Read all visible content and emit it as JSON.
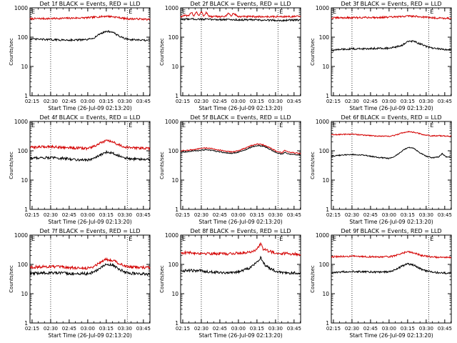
{
  "figure": {
    "background": "#ffffff",
    "series_colors": {
      "events": "#000000",
      "lld": "#d40000"
    }
  },
  "chart_data": [
    {
      "type": "line",
      "title": "Det 1f BLACK = Events, RED = LLD",
      "ylabel": "Counts/sec",
      "xlabel": "Start Time (26-Jul-09 02:13:20)",
      "yscale": "log",
      "ylim": [
        1,
        1000
      ],
      "y_ticks": [
        "1",
        "10",
        "100",
        "1000"
      ],
      "x_ticks": [
        "02:15",
        "02:30",
        "02:45",
        "03:00",
        "03:15",
        "03:30",
        "03:45"
      ],
      "x_tick_minutes": [
        15,
        30,
        45,
        60,
        75,
        90,
        105
      ],
      "xlim_minutes": [
        13.3,
        110.3
      ],
      "markers": [
        {
          "label": "",
          "minutes": 30
        },
        {
          "label": "E",
          "minutes": 92
        }
      ],
      "series": [
        {
          "key": "lld",
          "x_minutes": [
            13.3,
            20,
            30,
            40,
            50,
            60,
            70,
            75,
            80,
            85,
            90,
            95,
            100,
            105,
            110.3
          ],
          "values": [
            420,
            430,
            430,
            440,
            450,
            460,
            500,
            520,
            500,
            470,
            430,
            420,
            420,
            410,
            400
          ],
          "noise": 0.05
        },
        {
          "key": "events",
          "x_minutes": [
            13.3,
            20,
            30,
            40,
            50,
            60,
            65,
            70,
            75,
            80,
            85,
            90,
            95,
            100,
            105,
            110.3
          ],
          "values": [
            85,
            85,
            82,
            80,
            80,
            82,
            95,
            130,
            160,
            150,
            110,
            90,
            82,
            80,
            78,
            76
          ],
          "noise": 0.05
        }
      ]
    },
    {
      "type": "line",
      "title": "Det 2f BLACK = Events, RED = LLD",
      "ylabel": "Counts/sec",
      "xlabel": "Start Time (26-Jul-09 02:13:20)",
      "yscale": "log",
      "ylim": [
        1,
        1000
      ],
      "y_ticks": [
        "1",
        "10",
        "100",
        "1000"
      ],
      "x_ticks": [
        "02:15",
        "02:30",
        "02:45",
        "03:00",
        "03:15",
        "03:30",
        "03:45"
      ],
      "x_tick_minutes": [
        15,
        30,
        45,
        60,
        75,
        90,
        105
      ],
      "xlim_minutes": [
        13.3,
        110.3
      ],
      "markers": [
        {
          "label": "",
          "minutes": 30
        },
        {
          "label": "E",
          "minutes": 92
        }
      ],
      "series": [
        {
          "key": "lld",
          "x_minutes": [
            13.3,
            16,
            20,
            22,
            24,
            26,
            28,
            30,
            32,
            34,
            36,
            38,
            50,
            52,
            54,
            56,
            60,
            80,
            95,
            110.3
          ],
          "values": [
            500,
            550,
            520,
            750,
            520,
            760,
            520,
            740,
            520,
            720,
            520,
            500,
            510,
            700,
            510,
            650,
            500,
            500,
            500,
            510
          ],
          "noise": 0.05
        },
        {
          "key": "events",
          "x_minutes": [
            13.3,
            20,
            30,
            40,
            50,
            60,
            70,
            80,
            90,
            95,
            100,
            110.3
          ],
          "values": [
            400,
            420,
            410,
            400,
            400,
            390,
            390,
            380,
            380,
            370,
            380,
            385
          ],
          "noise": 0.05
        }
      ]
    },
    {
      "type": "line",
      "title": "Det 3f BLACK = Events, RED = LLD",
      "ylabel": "Counts/sec",
      "xlabel": "Start Time (26-Jul-09 02:13:20)",
      "yscale": "log",
      "ylim": [
        1,
        1000
      ],
      "y_ticks": [
        "1",
        "10",
        "100",
        "1000"
      ],
      "x_ticks": [
        "02:15",
        "02:30",
        "02:45",
        "03:00",
        "03:15",
        "03:30",
        "03:45"
      ],
      "x_tick_minutes": [
        15,
        30,
        45,
        60,
        75,
        90,
        105
      ],
      "xlim_minutes": [
        13.3,
        110.3
      ],
      "markers": [
        {
          "label": "",
          "minutes": 30
        },
        {
          "label": "E",
          "minutes": 92
        }
      ],
      "series": [
        {
          "key": "lld",
          "x_minutes": [
            13.3,
            20,
            30,
            40,
            50,
            60,
            70,
            75,
            80,
            90,
            95,
            100,
            110.3
          ],
          "values": [
            450,
            460,
            460,
            470,
            470,
            480,
            500,
            530,
            520,
            480,
            460,
            450,
            440
          ],
          "noise": 0.05
        },
        {
          "key": "events",
          "x_minutes": [
            13.3,
            20,
            30,
            40,
            50,
            60,
            65,
            70,
            75,
            80,
            85,
            90,
            95,
            100,
            110.3
          ],
          "values": [
            35,
            38,
            40,
            40,
            42,
            42,
            45,
            52,
            70,
            72,
            60,
            48,
            42,
            40,
            36
          ],
          "noise": 0.05
        }
      ]
    },
    {
      "type": "line",
      "title": "Det 4f BLACK = Events, RED = LLD",
      "ylabel": "Counts/sec",
      "xlabel": "Start Time (26-Jul-09 02:13:20)",
      "yscale": "log",
      "ylim": [
        1,
        1000
      ],
      "y_ticks": [
        "1",
        "10",
        "100",
        "1000"
      ],
      "x_ticks": [
        "02:15",
        "02:30",
        "02:45",
        "03:00",
        "03:15",
        "03:30",
        "03:45"
      ],
      "x_tick_minutes": [
        15,
        30,
        45,
        60,
        75,
        90,
        105
      ],
      "xlim_minutes": [
        13.3,
        110.3
      ],
      "markers": [
        {
          "label": "",
          "minutes": 30
        },
        {
          "label": "E",
          "minutes": 92
        }
      ],
      "series": [
        {
          "key": "lld",
          "x_minutes": [
            13.3,
            20,
            30,
            40,
            50,
            60,
            65,
            70,
            75,
            80,
            85,
            90,
            95,
            100,
            110.3
          ],
          "values": [
            130,
            135,
            140,
            130,
            125,
            120,
            140,
            180,
            220,
            200,
            160,
            135,
            125,
            125,
            120
          ],
          "noise": 0.07
        },
        {
          "key": "events",
          "x_minutes": [
            13.3,
            20,
            30,
            40,
            50,
            60,
            65,
            70,
            75,
            80,
            85,
            90,
            95,
            100,
            110.3
          ],
          "values": [
            55,
            58,
            58,
            55,
            50,
            48,
            55,
            70,
            90,
            85,
            68,
            58,
            52,
            52,
            50
          ],
          "noise": 0.07
        }
      ]
    },
    {
      "type": "line",
      "title": "Det 5f BLACK = Events, RED = LLD",
      "ylabel": "Counts/sec",
      "xlabel": "Start Time (26-Jul-09 02:13:20)",
      "yscale": "log",
      "ylim": [
        1,
        1000
      ],
      "y_ticks": [
        "1",
        "10",
        "100",
        "1000"
      ],
      "x_ticks": [
        "02:15",
        "02:30",
        "02:45",
        "03:00",
        "03:15",
        "03:30",
        "03:45"
      ],
      "x_tick_minutes": [
        15,
        30,
        45,
        60,
        75,
        90,
        105
      ],
      "xlim_minutes": [
        13.3,
        110.3
      ],
      "markers": [
        {
          "label": "",
          "minutes": 30
        },
        {
          "label": "E",
          "minutes": 92
        }
      ],
      "series": [
        {
          "key": "lld",
          "x_minutes": [
            13.3,
            20,
            25,
            30,
            35,
            40,
            45,
            50,
            55,
            60,
            65,
            70,
            75,
            80,
            85,
            90,
            95,
            98,
            100,
            105,
            110.3
          ],
          "values": [
            100,
            105,
            110,
            120,
            125,
            115,
            105,
            95,
            92,
            100,
            120,
            150,
            170,
            160,
            130,
            100,
            85,
            105,
            90,
            85,
            80
          ],
          "noise": 0.03
        },
        {
          "key": "events",
          "x_minutes": [
            13.3,
            20,
            25,
            30,
            35,
            40,
            45,
            50,
            55,
            60,
            65,
            70,
            75,
            80,
            85,
            90,
            95,
            98,
            100,
            105,
            110.3
          ],
          "values": [
            90,
            95,
            100,
            105,
            108,
            100,
            92,
            85,
            82,
            90,
            105,
            130,
            150,
            145,
            115,
            90,
            75,
            90,
            78,
            75,
            72
          ],
          "noise": 0.03
        }
      ]
    },
    {
      "type": "line",
      "title": "Det 6f BLACK = Events, RED = LLD",
      "ylabel": "Counts/sec",
      "xlabel": "Start Time (26-Jul-09 02:13:20)",
      "yscale": "log",
      "ylim": [
        1,
        1000
      ],
      "y_ticks": [
        "1",
        "10",
        "100",
        "1000"
      ],
      "x_ticks": [
        "02:15",
        "02:30",
        "02:45",
        "03:00",
        "03:15",
        "03:30",
        "03:45"
      ],
      "x_tick_minutes": [
        15,
        30,
        45,
        60,
        75,
        90,
        105
      ],
      "xlim_minutes": [
        13.3,
        110.3
      ],
      "markers": [
        {
          "label": "",
          "minutes": 30
        },
        {
          "label": "E",
          "minutes": 92
        }
      ],
      "series": [
        {
          "key": "lld",
          "x_minutes": [
            13.3,
            20,
            30,
            40,
            50,
            60,
            65,
            70,
            75,
            80,
            85,
            90,
            95,
            100,
            105,
            110.3
          ],
          "values": [
            350,
            360,
            370,
            340,
            320,
            310,
            340,
            400,
            450,
            430,
            380,
            340,
            320,
            330,
            320,
            310
          ],
          "noise": 0.03
        },
        {
          "key": "events",
          "x_minutes": [
            13.3,
            20,
            30,
            40,
            50,
            60,
            65,
            70,
            75,
            80,
            85,
            90,
            95,
            100,
            103,
            106,
            110.3
          ],
          "values": [
            65,
            70,
            75,
            70,
            60,
            55,
            65,
            95,
            130,
            120,
            85,
            65,
            58,
            62,
            80,
            62,
            60
          ],
          "noise": 0.03
        }
      ]
    },
    {
      "type": "line",
      "title": "Det 7f BLACK = Events, RED = LLD",
      "ylabel": "Counts/sec",
      "xlabel": "Start Time (26-Jul-09 02:13:20)",
      "yscale": "log",
      "ylim": [
        1,
        1000
      ],
      "y_ticks": [
        "1",
        "10",
        "100",
        "1000"
      ],
      "x_ticks": [
        "02:15",
        "02:30",
        "02:45",
        "03:00",
        "03:15",
        "03:30",
        "03:45"
      ],
      "x_tick_minutes": [
        15,
        30,
        45,
        60,
        75,
        90,
        105
      ],
      "xlim_minutes": [
        13.3,
        110.3
      ],
      "markers": [
        {
          "label": "",
          "minutes": 30
        },
        {
          "label": "E",
          "minutes": 92
        }
      ],
      "series": [
        {
          "key": "lld",
          "x_minutes": [
            13.3,
            20,
            30,
            40,
            50,
            60,
            65,
            70,
            75,
            80,
            85,
            90,
            95,
            100,
            110.3
          ],
          "values": [
            80,
            82,
            85,
            80,
            75,
            75,
            85,
            120,
            150,
            140,
            110,
            90,
            80,
            80,
            78
          ],
          "noise": 0.08
        },
        {
          "key": "events",
          "x_minutes": [
            13.3,
            20,
            30,
            40,
            50,
            60,
            65,
            70,
            75,
            80,
            85,
            90,
            95,
            100,
            110.3
          ],
          "values": [
            48,
            50,
            52,
            50,
            48,
            48,
            55,
            75,
            100,
            95,
            70,
            55,
            50,
            48,
            46
          ],
          "noise": 0.08
        }
      ]
    },
    {
      "type": "line",
      "title": "Det 8f BLACK = Events, RED = LLD",
      "ylabel": "Counts/sec",
      "xlabel": "Start Time (26-Jul-09 02:13:20)",
      "yscale": "log",
      "ylim": [
        1,
        1000
      ],
      "y_ticks": [
        "1",
        "10",
        "100",
        "1000"
      ],
      "x_ticks": [
        "02:15",
        "02:30",
        "02:45",
        "03:00",
        "03:15",
        "03:30",
        "03:45"
      ],
      "x_tick_minutes": [
        15,
        30,
        45,
        60,
        75,
        90,
        105
      ],
      "xlim_minutes": [
        13.3,
        110.3
      ],
      "markers": [
        {
          "label": "",
          "minutes": 30
        },
        {
          "label": "E",
          "minutes": 92
        }
      ],
      "series": [
        {
          "key": "lld",
          "x_minutes": [
            13.3,
            20,
            30,
            40,
            50,
            60,
            70,
            75,
            78,
            80,
            85,
            90,
            95,
            100,
            110.3
          ],
          "values": [
            250,
            250,
            240,
            235,
            230,
            240,
            270,
            330,
            520,
            330,
            280,
            250,
            235,
            235,
            220
          ],
          "noise": 0.08
        },
        {
          "key": "events",
          "x_minutes": [
            13.3,
            20,
            30,
            40,
            50,
            60,
            70,
            75,
            78,
            80,
            85,
            90,
            95,
            100,
            110.3
          ],
          "values": [
            60,
            62,
            60,
            55,
            52,
            55,
            80,
            120,
            175,
            110,
            75,
            60,
            52,
            52,
            50
          ],
          "noise": 0.08
        }
      ]
    },
    {
      "type": "line",
      "title": "Det 9f BLACK = Events, RED = LLD",
      "ylabel": "Counts/sec",
      "xlabel": "Start Time (26-Jul-09 02:13:20)",
      "yscale": "log",
      "ylim": [
        1,
        1000
      ],
      "y_ticks": [
        "1",
        "10",
        "100",
        "1000"
      ],
      "x_ticks": [
        "02:15",
        "02:30",
        "02:45",
        "03:00",
        "03:15",
        "03:30",
        "03:45"
      ],
      "x_tick_minutes": [
        15,
        30,
        45,
        60,
        75,
        90,
        105
      ],
      "xlim_minutes": [
        13.3,
        110.3
      ],
      "markers": [
        {
          "label": "",
          "minutes": 30
        },
        {
          "label": "E",
          "minutes": 92
        }
      ],
      "series": [
        {
          "key": "lld",
          "x_minutes": [
            13.3,
            20,
            30,
            40,
            50,
            60,
            65,
            70,
            75,
            80,
            85,
            90,
            95,
            100,
            110.3
          ],
          "values": [
            180,
            185,
            190,
            185,
            180,
            180,
            200,
            240,
            270,
            250,
            210,
            190,
            180,
            175,
            170
          ],
          "noise": 0.05
        },
        {
          "key": "events",
          "x_minutes": [
            13.3,
            20,
            30,
            40,
            50,
            60,
            65,
            70,
            75,
            80,
            85,
            90,
            95,
            100,
            110.3
          ],
          "values": [
            50,
            55,
            58,
            56,
            54,
            56,
            65,
            85,
            105,
            95,
            72,
            60,
            54,
            52,
            50
          ],
          "noise": 0.05
        }
      ]
    }
  ]
}
